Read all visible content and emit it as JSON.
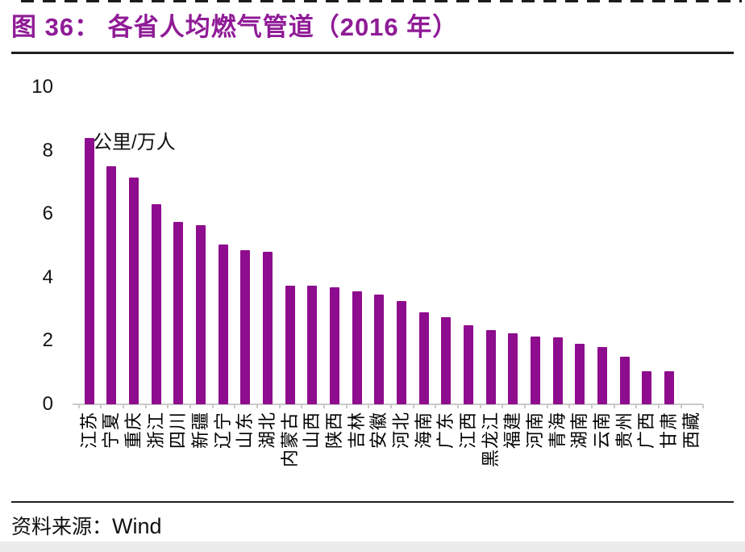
{
  "page": {
    "title": "图 36：  各省人均燃气管道（2016 年）",
    "source_label": "资料来源：",
    "source_value": "Wind"
  },
  "chart_data": {
    "type": "bar",
    "title": "各省人均燃气管道（2016 年）",
    "unit_label": "公里/万人",
    "xlabel": "",
    "ylabel": "公里/万人",
    "ylim": [
      0,
      10
    ],
    "yticks": [
      0,
      2,
      4,
      6,
      8,
      10
    ],
    "grid": false,
    "legend": "none",
    "bar_color": "#8E0C8E",
    "title_color": "#8F1B96",
    "categories": [
      "江苏",
      "宁夏",
      "重庆",
      "浙江",
      "四川",
      "新疆",
      "辽宁",
      "山东",
      "湖北",
      "内蒙古",
      "山西",
      "陕西",
      "吉林",
      "安徽",
      "河北",
      "海南",
      "广东",
      "江西",
      "黑龙江",
      "福建",
      "河南",
      "青海",
      "湖南",
      "云南",
      "贵州",
      "广西",
      "甘肃",
      "西藏"
    ],
    "values": [
      8.4,
      7.5,
      7.15,
      6.3,
      5.75,
      5.65,
      5.05,
      4.85,
      4.8,
      3.75,
      3.75,
      3.7,
      3.55,
      3.45,
      3.25,
      2.9,
      2.75,
      2.5,
      2.35,
      2.25,
      2.15,
      2.1,
      1.9,
      1.8,
      1.5,
      1.05,
      1.05,
      0
    ]
  }
}
